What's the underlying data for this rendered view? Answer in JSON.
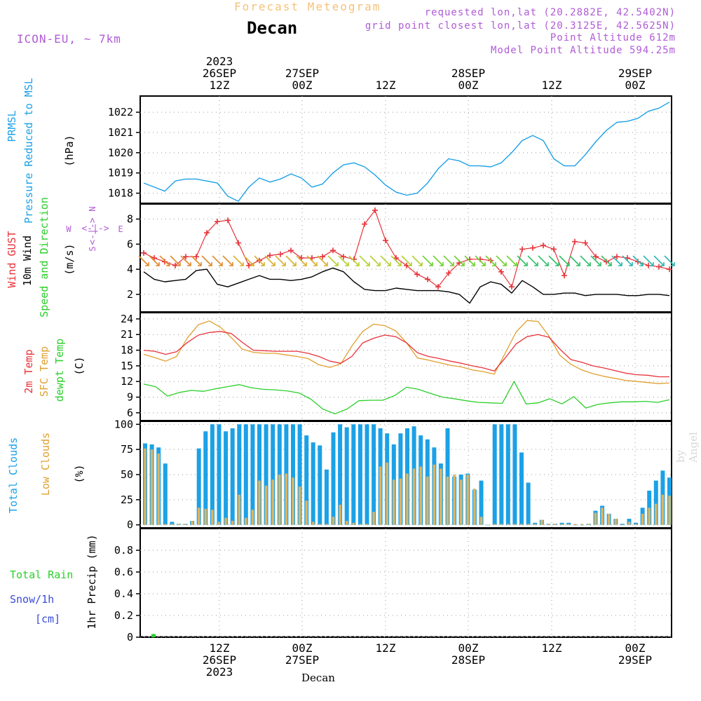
{
  "header": {
    "title": "Forecast Meteogram",
    "location": "Decan",
    "model": "ICON-EU, ~ 7km",
    "requested": "requested lon,lat (20.2882E, 42.5402N)",
    "grid_point": "grid point closest lon,lat (20.3125E, 42.5625N)",
    "point_alt": "Point Altitude 612m",
    "model_alt": "Model Point Altitude 594.25m",
    "footer_location": "Decan",
    "watermark": "by Angel"
  },
  "time_axis": {
    "top_labels": [
      {
        "lines": [
          "2023",
          "26SEP",
          "12Z"
        ]
      },
      {
        "lines": [
          "27SEP",
          "00Z"
        ]
      },
      {
        "lines": [
          "12Z"
        ]
      },
      {
        "lines": [
          "28SEP",
          "00Z"
        ]
      },
      {
        "lines": [
          "12Z"
        ]
      },
      {
        "lines": [
          "29SEP",
          "00Z"
        ]
      }
    ],
    "bottom_labels": [
      {
        "lines": [
          "12Z",
          "26SEP",
          "2023"
        ]
      },
      {
        "lines": [
          "00Z",
          "27SEP"
        ]
      },
      {
        "lines": [
          "12Z"
        ]
      },
      {
        "lines": [
          "00Z",
          "28SEP"
        ]
      },
      {
        "lines": [
          "12Z"
        ]
      },
      {
        "lines": [
          "00Z",
          "29SEP"
        ]
      }
    ]
  },
  "colors": {
    "pressure": "#1ba1e6",
    "gust": "#e8333a",
    "wind": "#000000",
    "temp": "#e8333a",
    "sfc": "#e0a030",
    "dew": "#2bcf2b",
    "total_cloud": "#1ba1e6",
    "low_cloud": "#d9b565",
    "rain": "#2bcf2b",
    "snow": "#3b4bd6",
    "purple": "#b05bd6"
  },
  "chart_data": [
    {
      "type": "line",
      "panel": "pressure",
      "ylabels": [
        "PRMSL",
        "Pressure Reduced to MSL",
        "(hPa)"
      ],
      "yticks": [
        1018,
        1019,
        1020,
        1021,
        1022
      ],
      "ylim": [
        1017.5,
        1022.8
      ],
      "grid": true,
      "series": [
        {
          "name": "PRMSL",
          "values": [
            1018.5,
            1018.3,
            1018.1,
            1018.6,
            1018.7,
            1018.7,
            1018.6,
            1018.5,
            1017.85,
            1017.6,
            1018.3,
            1018.75,
            1018.55,
            1018.7,
            1018.95,
            1018.75,
            1018.3,
            1018.45,
            1019.0,
            1019.4,
            1019.5,
            1019.3,
            1018.9,
            1018.4,
            1018.05,
            1017.9,
            1018.0,
            1018.5,
            1019.2,
            1019.7,
            1019.6,
            1019.35,
            1019.35,
            1019.3,
            1019.5,
            1020.0,
            1020.6,
            1020.85,
            1020.6,
            1019.7,
            1019.35,
            1019.35,
            1019.9,
            1020.55,
            1021.1,
            1021.5,
            1021.55,
            1021.7,
            1022.05,
            1022.2,
            1022.5
          ]
        }
      ]
    },
    {
      "type": "line",
      "panel": "wind",
      "ylabels": [
        "Wind GUST",
        "10m Wind",
        "Speed and Direction",
        "(m/s)"
      ],
      "direction_legend": {
        "n": "N",
        "s": "S",
        "w": "W",
        "e": "E",
        "arrow": "<-|->"
      },
      "yticks": [
        2,
        4,
        6,
        8
      ],
      "ylim": [
        0.6,
        9.2
      ],
      "grid": true,
      "series": [
        {
          "name": "Wind GUST",
          "values": [
            5.3,
            4.9,
            4.6,
            4.3,
            5.0,
            5.0,
            6.9,
            7.8,
            7.9,
            6.1,
            4.3,
            4.7,
            5.1,
            5.2,
            5.5,
            4.9,
            4.9,
            5.0,
            5.5,
            5.0,
            4.8,
            7.6,
            8.7,
            6.3,
            4.9,
            4.3,
            3.6,
            3.2,
            2.6,
            3.7,
            4.5,
            4.8,
            4.8,
            4.7,
            3.8,
            2.6,
            5.6,
            5.7,
            5.9,
            5.6,
            3.5,
            6.2,
            6.1,
            5.0,
            4.6,
            5.0,
            4.9,
            4.6,
            4.3,
            4.2,
            4.0
          ]
        },
        {
          "name": "10m Wind",
          "values": [
            3.8,
            3.2,
            3.0,
            3.1,
            3.2,
            3.9,
            4.0,
            2.8,
            2.6,
            2.9,
            3.2,
            3.5,
            3.2,
            3.2,
            3.1,
            3.2,
            3.4,
            3.8,
            4.1,
            3.8,
            3.0,
            2.4,
            2.3,
            2.3,
            2.5,
            2.4,
            2.3,
            2.3,
            2.3,
            2.2,
            2.0,
            1.3,
            2.6,
            3.0,
            2.8,
            2.1,
            3.1,
            2.6,
            2.0,
            2.0,
            2.1,
            2.1,
            1.9,
            2.0,
            2.0,
            2.0,
            1.9,
            1.9,
            2.0,
            2.0,
            1.9
          ]
        },
        {
          "name": "Speed and Direction",
          "values": [
            3.8,
            3.2,
            3.0,
            3.1,
            3.2,
            3.9,
            4.0,
            2.8,
            2.6,
            2.9,
            3.2,
            3.5,
            3.2,
            3.2,
            3.1,
            3.2,
            3.4,
            3.8,
            4.1,
            3.8,
            3.0,
            2.4,
            2.3,
            2.3,
            2.5,
            2.4,
            2.3,
            2.3,
            2.3,
            2.2,
            2.0,
            1.3,
            2.6,
            3.0,
            2.8,
            2.1,
            3.1,
            2.6,
            2.0,
            2.0,
            2.1,
            2.1,
            1.9,
            2.0,
            2.0,
            2.0,
            1.9,
            1.9,
            2.0,
            2.0,
            1.9
          ]
        }
      ]
    },
    {
      "type": "line",
      "panel": "temperature",
      "ylabels": [
        "2m Temp",
        "SFC Temp",
        "dewpt Temp",
        "(C)"
      ],
      "yticks": [
        6,
        9,
        12,
        15,
        18,
        21,
        24
      ],
      "ylim": [
        4.5,
        25.2
      ],
      "grid": true,
      "series": [
        {
          "name": "2m Temp",
          "values": [
            18.0,
            17.8,
            17.2,
            17.7,
            19.5,
            20.9,
            21.4,
            21.6,
            21.2,
            19.5,
            18.0,
            17.9,
            17.8,
            17.8,
            17.8,
            17.4,
            16.8,
            15.9,
            15.5,
            16.8,
            19.4,
            20.3,
            20.9,
            20.6,
            19.4,
            17.5,
            16.8,
            16.4,
            15.9,
            15.5,
            15.0,
            14.6,
            14.0,
            16.5,
            19.2,
            20.6,
            21.0,
            20.5,
            18.2,
            16.2,
            15.7,
            15.0,
            14.6,
            14.1,
            13.6,
            13.3,
            13.2,
            12.9,
            12.9
          ]
        },
        {
          "name": "SFC Temp",
          "values": [
            17.2,
            16.6,
            15.9,
            16.8,
            20.4,
            22.9,
            23.6,
            22.4,
            20.4,
            18.2,
            17.6,
            17.4,
            17.4,
            17.1,
            16.8,
            16.4,
            15.2,
            14.7,
            15.4,
            18.8,
            21.6,
            23.0,
            22.7,
            21.7,
            19.4,
            16.5,
            16.1,
            15.6,
            15.1,
            14.8,
            14.2,
            13.9,
            13.4,
            17.4,
            21.5,
            23.7,
            23.5,
            20.7,
            17.0,
            15.3,
            14.2,
            13.5,
            13.0,
            12.6,
            12.2,
            12.0,
            11.8,
            11.6,
            11.7
          ]
        },
        {
          "name": "dewpt Temp",
          "values": [
            11.5,
            11.0,
            9.2,
            9.9,
            10.3,
            10.1,
            10.6,
            11.0,
            11.4,
            10.8,
            10.5,
            10.4,
            10.2,
            9.8,
            8.6,
            6.7,
            5.8,
            6.7,
            8.3,
            8.4,
            8.4,
            9.3,
            10.9,
            10.5,
            9.7,
            9.0,
            8.7,
            8.3,
            8.0,
            7.9,
            7.8,
            12.0,
            7.7,
            7.9,
            8.7,
            7.7,
            9.1,
            6.9,
            7.6,
            7.9,
            8.1,
            8.1,
            8.2,
            8.0,
            8.5
          ]
        }
      ]
    },
    {
      "type": "bar",
      "panel": "clouds",
      "ylabels": [
        "Total Clouds",
        "Low Clouds",
        "(%)"
      ],
      "yticks": [
        0,
        25,
        50,
        75,
        100
      ],
      "ylim": [
        -3,
        103
      ],
      "grid": true,
      "series": [
        {
          "name": "Total Clouds",
          "values": [
            81,
            80,
            77,
            61,
            3,
            1,
            1,
            4,
            76,
            93,
            100,
            100,
            93,
            96,
            100,
            100,
            100,
            100,
            100,
            100,
            100,
            100,
            100,
            100,
            89,
            82,
            79,
            55,
            92,
            100,
            97,
            100,
            100,
            100,
            100,
            96,
            91,
            80,
            91,
            96,
            98,
            89,
            85,
            77,
            61,
            96,
            48,
            50,
            51,
            35,
            44,
            0,
            100,
            100,
            100,
            100,
            72,
            42,
            2,
            5,
            1,
            1,
            2,
            2,
            0,
            0,
            1,
            14,
            19,
            11,
            6,
            1,
            6,
            2,
            17,
            34,
            44,
            54,
            47
          ]
        },
        {
          "name": "Low Clouds",
          "values": [
            76,
            75,
            71,
            1,
            1,
            1,
            1,
            4,
            17,
            16,
            15,
            3,
            7,
            4,
            30,
            7,
            15,
            44,
            39,
            45,
            50,
            51,
            47,
            38,
            24,
            3,
            1,
            1,
            8,
            20,
            4,
            2,
            1,
            1,
            13,
            58,
            62,
            45,
            46,
            51,
            56,
            58,
            48,
            60,
            56,
            48,
            50,
            45,
            50,
            36,
            8,
            0,
            1,
            1,
            1,
            1,
            1,
            1,
            1,
            5,
            1,
            1,
            1,
            1,
            1,
            1,
            1,
            12,
            17,
            11,
            6,
            0,
            3,
            1,
            11,
            17,
            21,
            30,
            29
          ]
        }
      ]
    },
    {
      "type": "bar",
      "panel": "precip",
      "ylabels": [
        "1hr Precip (mm)"
      ],
      "legend": {
        "rain": "Total  Rain",
        "snow": "Snow/1h",
        "cm": "[cm]"
      },
      "yticks": [
        0,
        0.2,
        0.4,
        0.6,
        0.8
      ],
      "ylim": [
        0,
        1.0
      ],
      "grid": true,
      "series": [
        {
          "name": "Total  Rain",
          "values": [
            0.01
          ]
        }
      ]
    }
  ]
}
